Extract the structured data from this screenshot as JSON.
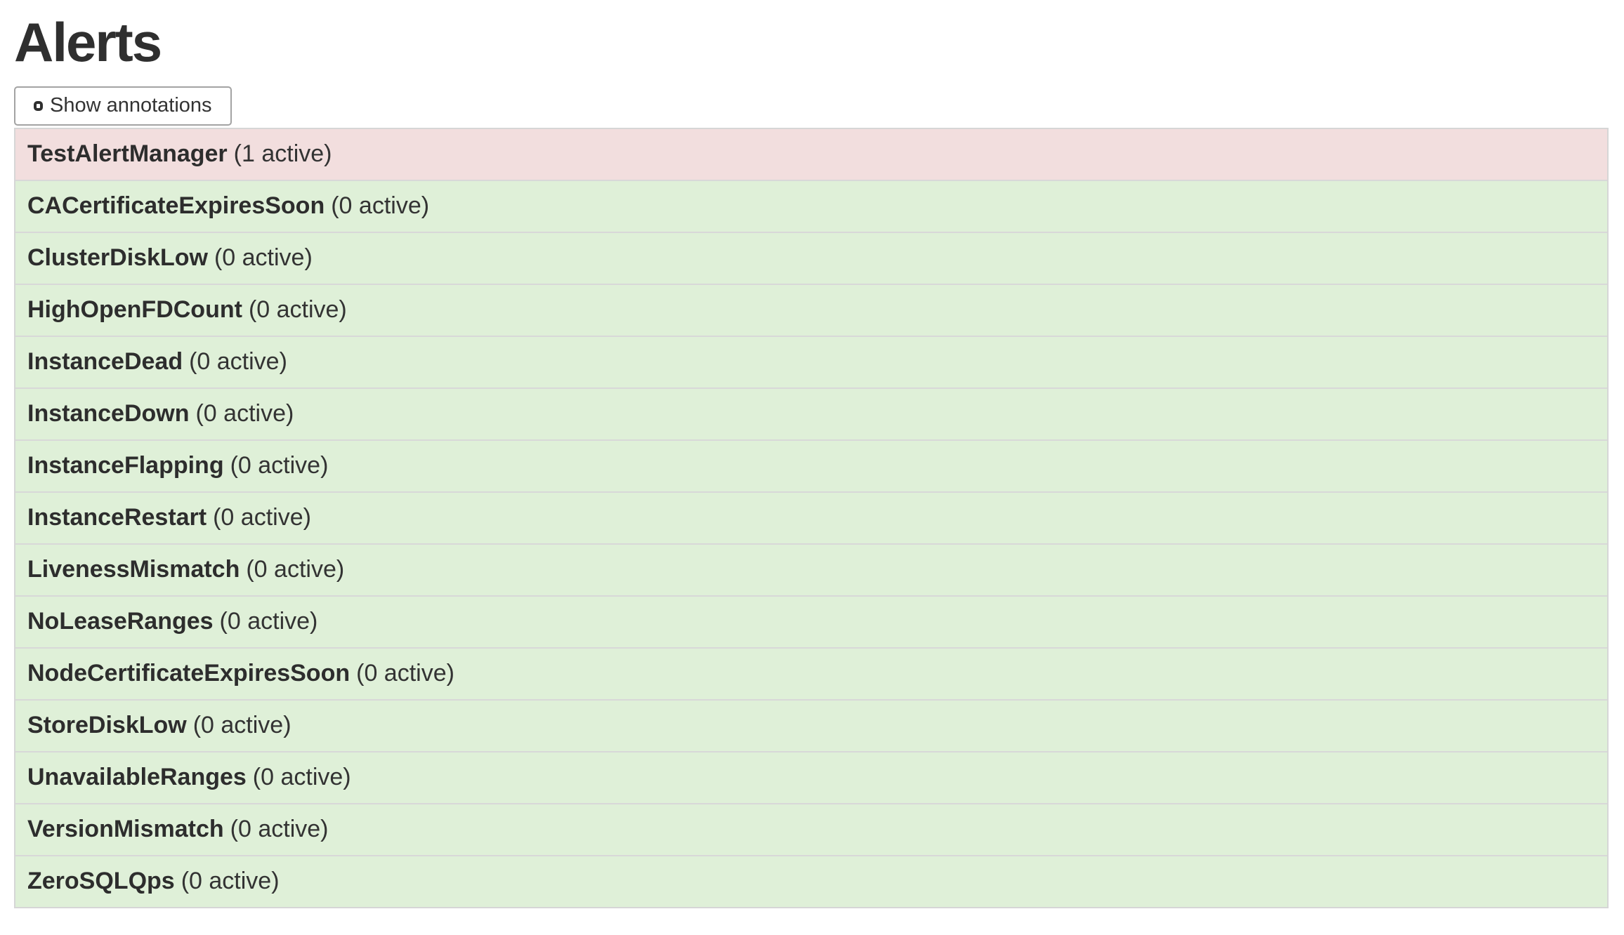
{
  "page": {
    "title": "Alerts"
  },
  "toolbar": {
    "show_annotations_label": "Show annotations",
    "annotations_checked": false
  },
  "alerts": [
    {
      "name": "TestAlertManager",
      "count_label": "(1 active)",
      "state": "firing"
    },
    {
      "name": "CACertificateExpiresSoon",
      "count_label": "(0 active)",
      "state": "inactive"
    },
    {
      "name": "ClusterDiskLow",
      "count_label": "(0 active)",
      "state": "inactive"
    },
    {
      "name": "HighOpenFDCount",
      "count_label": "(0 active)",
      "state": "inactive"
    },
    {
      "name": "InstanceDead",
      "count_label": "(0 active)",
      "state": "inactive"
    },
    {
      "name": "InstanceDown",
      "count_label": "(0 active)",
      "state": "inactive"
    },
    {
      "name": "InstanceFlapping",
      "count_label": "(0 active)",
      "state": "inactive"
    },
    {
      "name": "InstanceRestart",
      "count_label": "(0 active)",
      "state": "inactive"
    },
    {
      "name": "LivenessMismatch",
      "count_label": "(0 active)",
      "state": "inactive"
    },
    {
      "name": "NoLeaseRanges",
      "count_label": "(0 active)",
      "state": "inactive"
    },
    {
      "name": "NodeCertificateExpiresSoon",
      "count_label": "(0 active)",
      "state": "inactive"
    },
    {
      "name": "StoreDiskLow",
      "count_label": "(0 active)",
      "state": "inactive"
    },
    {
      "name": "UnavailableRanges",
      "count_label": "(0 active)",
      "state": "inactive"
    },
    {
      "name": "VersionMismatch",
      "count_label": "(0 active)",
      "state": "inactive"
    },
    {
      "name": "ZeroSQLQps",
      "count_label": "(0 active)",
      "state": "inactive"
    }
  ],
  "colors": {
    "firing_bg": "#f2dede",
    "inactive_bg": "#dff0d8",
    "row_border": "#d8d8d8",
    "text": "#333333"
  }
}
